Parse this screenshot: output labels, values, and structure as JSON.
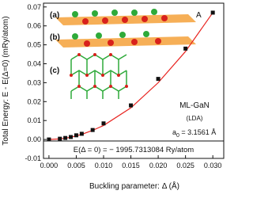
{
  "chart_data": {
    "type": "scatter",
    "y_label": "Total Energy: E - E(Δ=0) (mRy/atom)",
    "x_label": "Buckling parameter: Δ (Å)",
    "x": [
      0,
      0.002,
      0.003,
      0.004,
      0.005,
      0.006,
      0.008,
      0.01,
      0.015,
      0.02,
      0.025,
      0.03
    ],
    "series": [
      {
        "color": "#e8231f",
        "line": true,
        "values": [
          0,
          0.0003,
          0.0007,
          0.0012,
          0.0019,
          0.0027,
          0.0048,
          0.0074,
          0.0167,
          0.03,
          0.0465,
          0.067
        ]
      },
      {
        "color": "#111111",
        "marker": "square",
        "values": [
          0,
          0.0004,
          0.0008,
          0.0013,
          0.0022,
          0.003,
          0.005,
          0.0085,
          0.018,
          0.032,
          0.048,
          0.067
        ]
      }
    ],
    "xlim": [
      -0.001,
      0.032
    ],
    "ylim": [
      -0.01,
      0.072
    ],
    "xticks": [
      {
        "value": 0,
        "label": "0.000"
      },
      0.005,
      {
        "value": 0.01,
        "label": "0.010"
      },
      0.015,
      {
        "value": 0.02,
        "label": "0.020"
      },
      0.025,
      {
        "value": 0.03,
        "label": "0.030"
      }
    ],
    "yticks": [
      -0.01,
      {
        "value": 0,
        "label": "0.00"
      },
      0.01,
      0.02,
      0.03,
      0.04,
      0.05,
      0.06,
      0.07
    ],
    "annotations": {
      "material": "ML-GaN",
      "method": "(LDA)",
      "a0_main": "a",
      "a0_sub": "0",
      "a0_rest": " = 3.1561 Å",
      "energy": "E(Δ = 0) = − 1995.7313084 Ry/atom",
      "panel_a": "(a)",
      "panel_b": "(b)",
      "panel_c": "(c)",
      "atom_a": "A"
    }
  }
}
